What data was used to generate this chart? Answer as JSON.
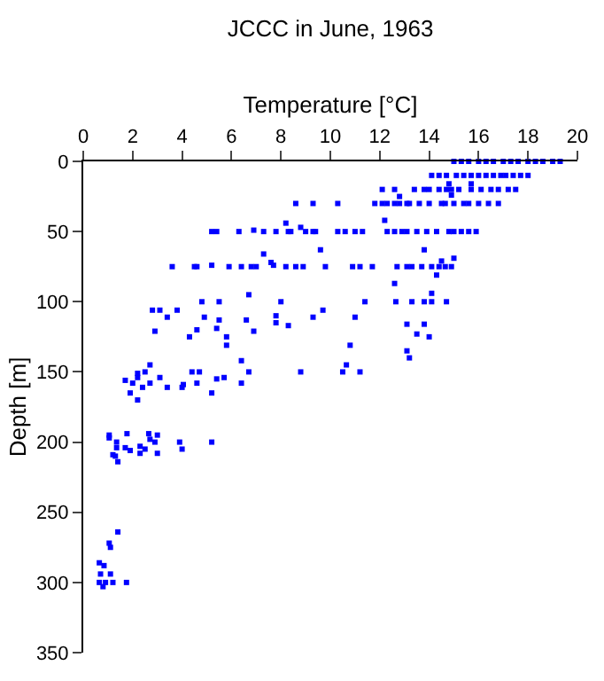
{
  "chart_data": {
    "type": "scatter",
    "title": "JCCC in June, 1963",
    "xlabel": "Temperature [°C]",
    "ylabel": "Depth [m]",
    "xlim": [
      0,
      20
    ],
    "xticks": [
      0,
      2,
      4,
      6,
      8,
      10,
      12,
      14,
      16,
      18,
      20
    ],
    "ylim": [
      350,
      0
    ],
    "yticks": [
      0,
      50,
      100,
      150,
      200,
      250,
      300,
      350
    ],
    "marker": "square",
    "series": [
      {
        "color": "#0000ff",
        "x": [
          15.0,
          15.3,
          15.6,
          16.0,
          16.3,
          16.6,
          17.0,
          17.3,
          17.6,
          18.0,
          18.3,
          18.6,
          19.0,
          19.3,
          14.1,
          14.4,
          14.7,
          15.1,
          15.4,
          15.7,
          16.0,
          16.3,
          16.6,
          16.9,
          17.1,
          17.4,
          17.7,
          18.0,
          14.8,
          15.7,
          12.1,
          12.6,
          13.4,
          13.8,
          14.0,
          14.4,
          14.7,
          14.9,
          15.2,
          15.7,
          16.1,
          16.5,
          16.8,
          17.2,
          17.5,
          14.9,
          12.8,
          10.3,
          11.8,
          12.1,
          12.3,
          12.6,
          12.8,
          13.1,
          13.2,
          13.6,
          14.0,
          14.5,
          14.65,
          15.0,
          15.4,
          15.6,
          16.0,
          16.4,
          16.8,
          12.2,
          10.3,
          10.6,
          11.0,
          11.3,
          12.3,
          12.6,
          12.9,
          13.1,
          13.5,
          13.9,
          14.3,
          14.8,
          15.0,
          15.3,
          15.6,
          15.9,
          13.8,
          15.0,
          14.5,
          10.9,
          11.2,
          11.7,
          12.7,
          13.1,
          13.3,
          13.7,
          14.1,
          14.4,
          14.65,
          14.9,
          14.3,
          12.6,
          14.1,
          11.4,
          12.65,
          13.3,
          13.8,
          14.1,
          14.7,
          11.0,
          13.1,
          13.8,
          13.5,
          14.0,
          10.8,
          13.1,
          13.2,
          10.65,
          10.5,
          11.2,
          8.6,
          9.3,
          8.2,
          8.8,
          9.3,
          5.2,
          5.4,
          6.3,
          6.9,
          7.3,
          7.8,
          8.3,
          8.4,
          9.0,
          9.4,
          7.3,
          7.6,
          7.7,
          3.6,
          4.5,
          4.6,
          5.2,
          5.9,
          6.4,
          6.8,
          7.0,
          8.2,
          8.6,
          8.9,
          9.6,
          9.8,
          6.7,
          4.8,
          5.5,
          8.0,
          2.8,
          3.1,
          3.8,
          3.4,
          4.9,
          5.5,
          6.6,
          7.8,
          7.8,
          8.3,
          9.3,
          9.7,
          2.9,
          4.6,
          4.3,
          5.4,
          5.8,
          6.9,
          5.8,
          6.4,
          2.7,
          2.5,
          2.2,
          2.2,
          1.7,
          2.0,
          2.4,
          2.7,
          1.9,
          2.2,
          3.1,
          3.4,
          4.0,
          4.05,
          4.4,
          4.7,
          4.6,
          5.2,
          5.4,
          5.7,
          6.4,
          6.7,
          8.8,
          1.05,
          1.05,
          1.77,
          2.65,
          3.0,
          1.35,
          1.35,
          1.7,
          1.9,
          1.2,
          1.3,
          1.4,
          2.3,
          2.3,
          2.5,
          2.7,
          2.9,
          3.0,
          3.9,
          4.0,
          5.2,
          1.4,
          1.05,
          1.1,
          0.65,
          0.84,
          0.7,
          1.1,
          0.65,
          0.9,
          1.2,
          0.8,
          1.75
        ],
        "values": [
          0,
          0,
          0,
          0,
          0,
          0,
          0,
          0,
          0,
          0,
          0,
          0,
          0,
          0,
          10,
          10,
          10,
          10,
          10,
          10,
          10,
          10,
          10,
          10,
          10,
          10,
          10,
          10,
          16,
          16,
          20,
          20,
          20,
          20,
          20,
          20,
          20,
          20,
          20,
          20,
          20,
          20,
          20,
          20,
          20,
          24,
          25,
          30,
          30,
          30,
          30,
          30,
          30,
          30,
          30,
          30,
          30,
          30,
          30,
          30,
          30,
          30,
          30,
          30,
          30,
          42,
          50,
          50,
          50,
          50,
          50,
          50,
          50,
          50,
          50,
          50,
          50,
          50,
          50,
          50,
          50,
          50,
          63,
          69,
          71,
          75,
          75,
          75,
          75,
          75,
          75,
          75,
          75,
          75,
          75,
          75,
          81,
          87,
          94,
          100,
          100,
          100,
          100,
          100,
          100,
          111,
          116,
          116,
          123,
          125,
          131,
          135,
          140,
          145,
          150,
          150,
          30,
          30,
          44,
          47,
          50,
          50,
          50,
          50,
          49,
          50,
          50,
          50,
          50,
          50,
          50,
          66,
          72,
          74,
          75,
          75,
          75,
          74,
          75,
          75,
          75,
          75,
          75,
          75,
          75,
          63,
          75,
          95,
          100,
          100,
          100,
          106,
          106,
          106,
          111,
          111,
          113,
          113,
          110,
          115,
          117,
          111,
          106,
          121,
          120,
          125,
          119,
          125,
          121,
          131,
          142,
          145,
          150,
          151,
          154,
          156,
          158,
          161,
          158,
          165,
          170,
          154,
          161,
          161,
          159,
          150,
          150,
          158,
          165,
          155,
          154,
          158,
          150,
          150,
          195,
          197,
          194,
          194,
          195,
          200,
          204,
          204,
          206,
          209,
          210,
          214,
          203,
          208,
          205,
          198,
          200,
          208,
          200,
          205,
          200,
          264,
          272,
          275,
          286,
          288,
          294,
          294,
          300,
          300,
          300,
          303,
          300
        ]
      }
    ]
  }
}
